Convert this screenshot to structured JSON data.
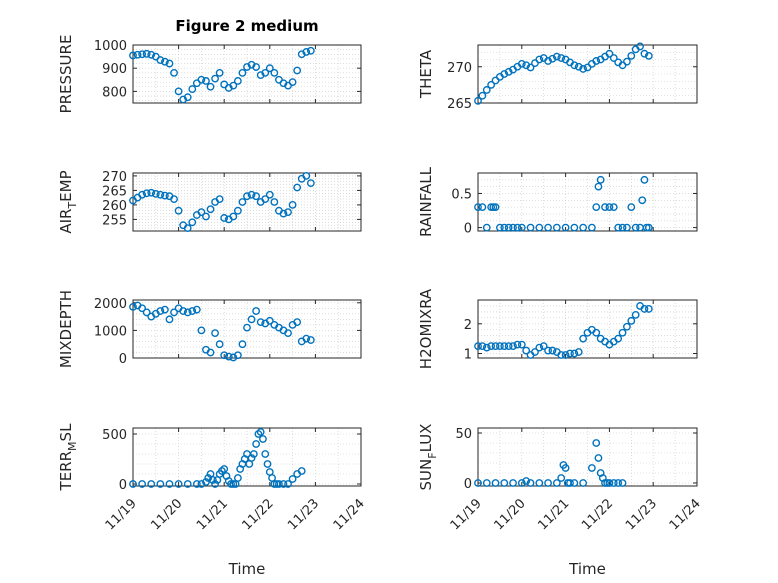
{
  "figure_title": "Figure 2 medium",
  "colors": {
    "series": "#0072bd",
    "axes": "#262626",
    "grid": "#c8c8c8"
  },
  "x_ticks": [
    "11/19",
    "11/20",
    "11/21",
    "11/22",
    "11/23",
    "11/24"
  ],
  "x_label": "Time",
  "chart_data": [
    {
      "id": "pressure",
      "type": "scatter",
      "title": "Figure 2 medium",
      "ylabel": "PRESSURE",
      "ylabel_sub": "",
      "ylabel_suffix": "",
      "ylim": [
        750,
        1000
      ],
      "yticks": [
        800,
        900,
        1000
      ],
      "grid": true,
      "x_ticks": [
        "11/19",
        "11/20",
        "11/21",
        "11/22",
        "11/23",
        "11/24"
      ],
      "xlabel": "",
      "x": [
        0,
        0.1,
        0.2,
        0.3,
        0.4,
        0.5,
        0.6,
        0.7,
        0.8,
        0.9,
        1.0,
        1.1,
        1.2,
        1.3,
        1.4,
        1.5,
        1.6,
        1.7,
        1.8,
        1.9,
        2.0,
        2.1,
        2.2,
        2.3,
        2.4,
        2.5,
        2.6,
        2.7,
        2.8,
        2.9,
        3.0,
        3.1,
        3.2,
        3.3,
        3.4,
        3.5,
        3.6,
        3.7,
        3.8,
        3.9
      ],
      "y": [
        955,
        958,
        960,
        962,
        958,
        950,
        935,
        928,
        920,
        880,
        800,
        765,
        775,
        810,
        835,
        850,
        845,
        820,
        855,
        880,
        830,
        815,
        825,
        845,
        880,
        905,
        915,
        905,
        870,
        880,
        900,
        880,
        850,
        835,
        825,
        840,
        890,
        960,
        970,
        975
      ]
    },
    {
      "id": "theta",
      "type": "scatter",
      "title": "",
      "ylabel": "THETA",
      "ylabel_sub": "",
      "ylabel_suffix": "",
      "ylim": [
        265,
        273
      ],
      "yticks": [
        265,
        270
      ],
      "grid": true,
      "x_ticks": [
        "11/19",
        "11/20",
        "11/21",
        "11/22",
        "11/23",
        "11/24"
      ],
      "xlabel": "",
      "x": [
        0,
        0.1,
        0.2,
        0.3,
        0.4,
        0.5,
        0.6,
        0.7,
        0.8,
        0.9,
        1.0,
        1.1,
        1.2,
        1.3,
        1.4,
        1.5,
        1.6,
        1.7,
        1.8,
        1.9,
        2.0,
        2.1,
        2.2,
        2.3,
        2.4,
        2.5,
        2.6,
        2.7,
        2.8,
        2.9,
        3.0,
        3.1,
        3.2,
        3.3,
        3.4,
        3.5,
        3.6,
        3.7,
        3.8,
        3.9
      ],
      "y": [
        265.3,
        266.0,
        266.8,
        267.5,
        268.1,
        268.6,
        269.0,
        269.3,
        269.6,
        270.0,
        270.4,
        270.2,
        269.9,
        270.5,
        271.0,
        271.2,
        270.8,
        271.1,
        271.4,
        271.2,
        271.0,
        270.6,
        270.2,
        270.0,
        269.7,
        269.9,
        270.4,
        270.8,
        271.0,
        271.4,
        271.8,
        271.2,
        270.6,
        270.2,
        270.7,
        271.5,
        272.4,
        272.8,
        271.8,
        271.5
      ]
    },
    {
      "id": "air_temp",
      "type": "scatter",
      "title": "",
      "ylabel": "AIR",
      "ylabel_sub": "T",
      "ylabel_suffix": "EMP",
      "ylim": [
        251,
        271
      ],
      "yticks": [
        255,
        260,
        265,
        270
      ],
      "grid": true,
      "x_ticks": [
        "11/19",
        "11/20",
        "11/21",
        "11/22",
        "11/23",
        "11/24"
      ],
      "xlabel": "",
      "x": [
        0,
        0.1,
        0.2,
        0.3,
        0.4,
        0.5,
        0.6,
        0.7,
        0.8,
        0.9,
        1.0,
        1.1,
        1.2,
        1.3,
        1.4,
        1.5,
        1.6,
        1.7,
        1.8,
        1.9,
        2.0,
        2.1,
        2.2,
        2.3,
        2.4,
        2.5,
        2.6,
        2.7,
        2.8,
        2.9,
        3.0,
        3.1,
        3.2,
        3.3,
        3.4,
        3.5,
        3.6,
        3.7,
        3.8,
        3.9
      ],
      "y": [
        261.5,
        262.5,
        263.5,
        264.0,
        264.2,
        263.8,
        263.5,
        263.2,
        263.0,
        262.0,
        258.0,
        253.0,
        252.0,
        254.0,
        256.5,
        257.5,
        256.0,
        258.5,
        261.0,
        262.0,
        255.5,
        255.0,
        256.0,
        258.0,
        261.0,
        263.0,
        263.5,
        263.0,
        261.0,
        262.0,
        263.5,
        261.0,
        258.0,
        257.0,
        257.5,
        260.0,
        266.0,
        269.0,
        270.0,
        267.5
      ]
    },
    {
      "id": "rainfall",
      "type": "scatter",
      "title": "",
      "ylabel": "RAINFALL",
      "ylabel_sub": "",
      "ylabel_suffix": "",
      "ylim": [
        -0.05,
        0.8
      ],
      "yticks": [
        0,
        0.5
      ],
      "grid": true,
      "x_ticks": [
        "11/19",
        "11/20",
        "11/21",
        "11/22",
        "11/23",
        "11/24"
      ],
      "xlabel": "",
      "x": [
        0.0,
        0.1,
        0.2,
        0.3,
        0.35,
        0.4,
        0.5,
        0.6,
        0.7,
        0.8,
        0.9,
        1.0,
        1.2,
        1.4,
        1.6,
        1.8,
        2.0,
        2.2,
        2.4,
        2.6,
        2.7,
        2.75,
        2.8,
        2.9,
        3.0,
        3.1,
        3.2,
        3.3,
        3.4,
        3.5,
        3.6,
        3.7,
        3.75,
        3.8,
        3.85,
        3.9
      ],
      "y": [
        0.3,
        0.3,
        0,
        0.3,
        0.3,
        0.3,
        0,
        0,
        0,
        0,
        0,
        0,
        0,
        0,
        0,
        0,
        0,
        0,
        0,
        0,
        0.3,
        0.6,
        0.7,
        0.3,
        0.3,
        0.3,
        0,
        0,
        0,
        0.3,
        0,
        0,
        0.4,
        0.7,
        0,
        0
      ]
    },
    {
      "id": "mixdepth",
      "type": "scatter",
      "title": "",
      "ylabel": "MIXDEPTH",
      "ylabel_sub": "",
      "ylabel_suffix": "",
      "ylim": [
        0,
        2100
      ],
      "yticks": [
        0,
        1000,
        2000
      ],
      "grid": true,
      "x_ticks": [
        "11/19",
        "11/20",
        "11/21",
        "11/22",
        "11/23",
        "11/24"
      ],
      "xlabel": "",
      "x": [
        0,
        0.1,
        0.2,
        0.3,
        0.4,
        0.5,
        0.6,
        0.7,
        0.8,
        0.9,
        1.0,
        1.1,
        1.2,
        1.3,
        1.4,
        1.5,
        1.6,
        1.7,
        1.8,
        1.9,
        2.0,
        2.1,
        2.2,
        2.3,
        2.4,
        2.5,
        2.6,
        2.7,
        2.8,
        2.9,
        3.0,
        3.1,
        3.2,
        3.3,
        3.4,
        3.5,
        3.6,
        3.7,
        3.8,
        3.9
      ],
      "y": [
        1850,
        1900,
        1800,
        1650,
        1500,
        1600,
        1700,
        1750,
        1400,
        1650,
        1800,
        1700,
        1650,
        1700,
        1750,
        1000,
        300,
        200,
        900,
        500,
        100,
        50,
        20,
        100,
        500,
        1100,
        1400,
        1700,
        1300,
        1250,
        1350,
        1200,
        1100,
        1000,
        900,
        1200,
        1300,
        600,
        700,
        650
      ]
    },
    {
      "id": "h2omixra",
      "type": "scatter",
      "title": "",
      "ylabel": "H2OMIXRA",
      "ylabel_sub": "",
      "ylabel_suffix": "",
      "ylim": [
        0.85,
        2.8
      ],
      "yticks": [
        1,
        2
      ],
      "grid": true,
      "x_ticks": [
        "11/19",
        "11/20",
        "11/21",
        "11/22",
        "11/23",
        "11/24"
      ],
      "xlabel": "",
      "x": [
        0,
        0.1,
        0.2,
        0.3,
        0.4,
        0.5,
        0.6,
        0.7,
        0.8,
        0.9,
        1.0,
        1.1,
        1.2,
        1.3,
        1.4,
        1.5,
        1.6,
        1.7,
        1.8,
        1.9,
        2.0,
        2.1,
        2.2,
        2.3,
        2.4,
        2.5,
        2.6,
        2.7,
        2.8,
        2.9,
        3.0,
        3.1,
        3.2,
        3.3,
        3.4,
        3.5,
        3.6,
        3.7,
        3.8,
        3.9
      ],
      "y": [
        1.25,
        1.25,
        1.2,
        1.25,
        1.25,
        1.25,
        1.25,
        1.25,
        1.25,
        1.3,
        1.3,
        1.1,
        0.95,
        1.05,
        1.2,
        1.25,
        1.1,
        1.1,
        1.05,
        0.95,
        0.95,
        1.0,
        1.0,
        1.05,
        1.5,
        1.7,
        1.8,
        1.7,
        1.5,
        1.4,
        1.3,
        1.4,
        1.5,
        1.7,
        1.9,
        2.1,
        2.3,
        2.6,
        2.5,
        2.5
      ]
    },
    {
      "id": "terr_msl",
      "type": "scatter",
      "title": "",
      "ylabel": "TERR",
      "ylabel_sub": "M",
      "ylabel_suffix": "SL",
      "ylim": [
        -20,
        560
      ],
      "yticks": [
        0,
        500
      ],
      "grid": true,
      "x_ticks": [
        "11/19",
        "11/20",
        "11/21",
        "11/22",
        "11/23",
        "11/24"
      ],
      "xlabel": "Time",
      "x": [
        0,
        0.2,
        0.4,
        0.6,
        0.8,
        1.0,
        1.2,
        1.4,
        1.5,
        1.6,
        1.65,
        1.7,
        1.75,
        1.8,
        1.85,
        1.9,
        1.95,
        2.0,
        2.05,
        2.1,
        2.15,
        2.2,
        2.25,
        2.3,
        2.35,
        2.4,
        2.45,
        2.5,
        2.55,
        2.6,
        2.65,
        2.7,
        2.75,
        2.8,
        2.85,
        2.9,
        2.95,
        3.0,
        3.05,
        3.1,
        3.15,
        3.2,
        3.3,
        3.4,
        3.5,
        3.6,
        3.7
      ],
      "y": [
        0,
        0,
        0,
        0,
        0,
        0,
        0,
        0,
        0,
        20,
        60,
        100,
        40,
        0,
        40,
        100,
        130,
        150,
        80,
        30,
        0,
        0,
        0,
        60,
        150,
        200,
        250,
        300,
        200,
        260,
        300,
        400,
        500,
        520,
        450,
        300,
        200,
        120,
        60,
        0,
        0,
        0,
        0,
        0,
        50,
        100,
        130
      ]
    },
    {
      "id": "sun_flux",
      "type": "scatter",
      "title": "",
      "ylabel": "SUN",
      "ylabel_sub": "F",
      "ylabel_suffix": "LUX",
      "ylim": [
        -3,
        55
      ],
      "yticks": [
        0,
        50
      ],
      "grid": true,
      "x_ticks": [
        "11/19",
        "11/20",
        "11/21",
        "11/22",
        "11/23",
        "11/24"
      ],
      "xlabel": "Time",
      "x": [
        0,
        0.2,
        0.4,
        0.6,
        0.8,
        1.0,
        1.1,
        1.2,
        1.4,
        1.6,
        1.8,
        1.9,
        1.95,
        2.0,
        2.05,
        2.1,
        2.2,
        2.4,
        2.6,
        2.7,
        2.75,
        2.8,
        2.85,
        2.9,
        2.95,
        3.0,
        3.1,
        3.2,
        3.3
      ],
      "y": [
        0,
        0,
        0,
        0,
        0,
        0,
        2,
        0,
        0,
        0,
        0,
        5,
        18,
        15,
        0,
        0,
        0,
        0,
        15,
        40,
        25,
        10,
        5,
        0,
        0,
        0,
        0,
        0,
        0
      ]
    }
  ]
}
